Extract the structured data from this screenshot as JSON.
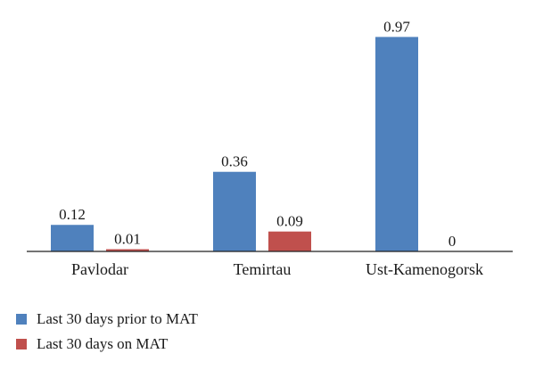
{
  "chart_data": {
    "type": "bar",
    "categories": [
      "Pavlodar",
      "Temirtau",
      "Ust-Kamenogorsk"
    ],
    "series": [
      {
        "name": "Last 30 days prior to MAT",
        "color": "#4f81bd",
        "values": [
          0.12,
          0.36,
          0.97
        ],
        "labels": [
          "0.12",
          "0.36",
          "0.97"
        ]
      },
      {
        "name": "Last 30 days on MAT",
        "color": "#c0504d",
        "values": [
          0.01,
          0.09,
          0
        ],
        "labels": [
          "0.01",
          "0.09",
          "0"
        ]
      }
    ],
    "ylim": [
      0,
      1
    ],
    "y_axis_shown": false,
    "grid": false,
    "data_labels": true,
    "legend": "bottom-left"
  }
}
